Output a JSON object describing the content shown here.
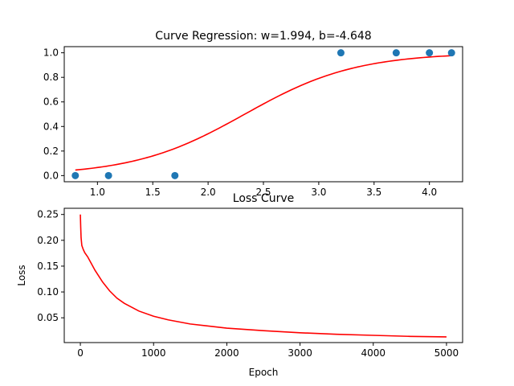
{
  "chart_data": [
    {
      "type": "scatter",
      "title": "Curve Regression: w=1.994, b=-4.648",
      "xlabel": "",
      "ylabel": "",
      "xlim": [
        0.7,
        4.3
      ],
      "ylim": [
        -0.05,
        1.05
      ],
      "xticks": [
        "1.0",
        "1.5",
        "2.0",
        "2.5",
        "3.0",
        "3.5",
        "4.0"
      ],
      "yticks": [
        "0.0",
        "0.2",
        "0.4",
        "0.6",
        "0.8",
        "1.0"
      ],
      "grid": false,
      "colors": {
        "points": "#1f77b4",
        "curve": "#ff0000"
      },
      "series": [
        {
          "kind": "scatter",
          "x": [
            0.8,
            1.1,
            1.7,
            3.2,
            3.7,
            4.0,
            4.2
          ],
          "y": [
            0,
            0,
            0,
            1,
            1,
            1,
            1
          ]
        },
        {
          "kind": "line",
          "function": "sigmoid",
          "w": 1.994,
          "b": -4.648,
          "x_range": [
            0.8,
            4.2
          ]
        }
      ]
    },
    {
      "type": "line",
      "title": "Loss Curve",
      "xlabel": "Epoch",
      "ylabel": "Loss",
      "xlim": [
        -220,
        5220
      ],
      "ylim": [
        0.002,
        0.262
      ],
      "xticks": [
        "0",
        "1000",
        "2000",
        "3000",
        "4000",
        "5000"
      ],
      "yticks": [
        "0.05",
        "0.10",
        "0.15",
        "0.20",
        "0.25"
      ],
      "grid": false,
      "colors": {
        "line": "#ff0000"
      },
      "series": [
        {
          "x": [
            0,
            5,
            10,
            20,
            40,
            60,
            80,
            100,
            150,
            200,
            300,
            400,
            500,
            600,
            800,
            1000,
            1200,
            1500,
            2000,
            2500,
            3000,
            3500,
            4000,
            4500,
            5000
          ],
          "y": [
            0.25,
            0.225,
            0.205,
            0.19,
            0.182,
            0.176,
            0.172,
            0.168,
            0.155,
            0.142,
            0.12,
            0.102,
            0.088,
            0.078,
            0.063,
            0.053,
            0.046,
            0.038,
            0.03,
            0.025,
            0.021,
            0.018,
            0.016,
            0.014,
            0.013
          ]
        }
      ]
    }
  ]
}
